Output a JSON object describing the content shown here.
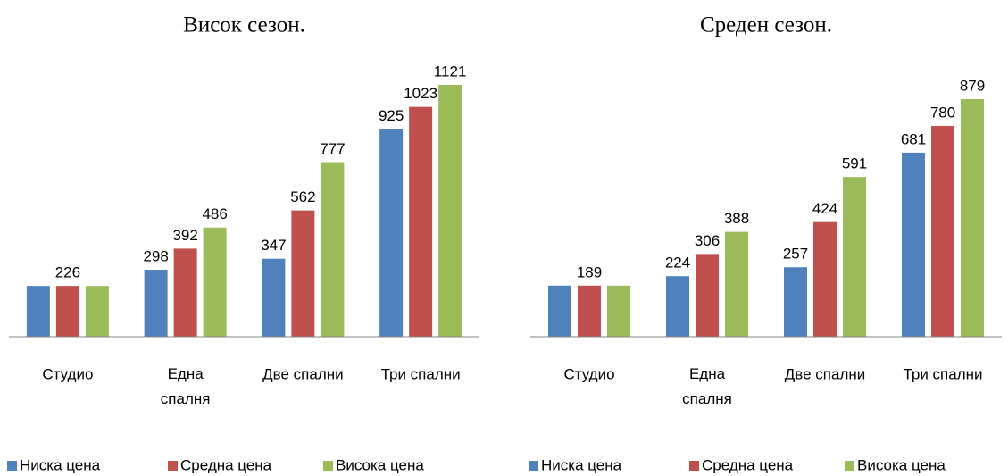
{
  "chart_data": [
    {
      "type": "bar",
      "title": "Висок сезон.",
      "categories": [
        "Студио",
        "Една спалня",
        "Две спални",
        "Три спални"
      ],
      "series": [
        {
          "name": "Ниска цена",
          "color": "#4f81bd",
          "values": [
            226,
            298,
            347,
            925
          ],
          "value_labels": [
            null,
            "298",
            "347",
            "925"
          ]
        },
        {
          "name": "Средна цена",
          "color": "#c0504d",
          "values": [
            226,
            392,
            562,
            1023
          ],
          "value_labels": [
            "226",
            "392",
            "562",
            "1023"
          ]
        },
        {
          "name": "Висока цена",
          "color": "#9bbb59",
          "values": [
            226,
            486,
            777,
            1121
          ],
          "value_labels": [
            null,
            "486",
            "777",
            "1121"
          ]
        }
      ]
    },
    {
      "type": "bar",
      "title": "Среден сезон.",
      "categories": [
        "Студио",
        "Една спалня",
        "Две спални",
        "Три спални"
      ],
      "series": [
        {
          "name": "Ниска цена",
          "color": "#4f81bd",
          "values": [
            189,
            224,
            257,
            681
          ],
          "value_labels": [
            null,
            "224",
            "257",
            "681"
          ]
        },
        {
          "name": "Средна цена",
          "color": "#c0504d",
          "values": [
            189,
            306,
            424,
            780
          ],
          "value_labels": [
            "189",
            "306",
            "424",
            "780"
          ]
        },
        {
          "name": "Висока цена",
          "color": "#9bbb59",
          "values": [
            189,
            388,
            591,
            879
          ],
          "value_labels": [
            null,
            "388",
            "591",
            "879"
          ]
        }
      ]
    }
  ]
}
